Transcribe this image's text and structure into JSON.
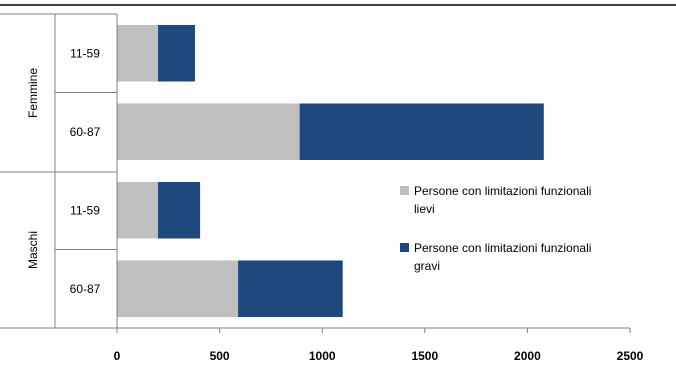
{
  "chart_data": {
    "type": "bar",
    "orientation": "horizontal",
    "stacked": true,
    "groups": [
      {
        "label": "Femmine",
        "categories": [
          "11-59",
          "60-87"
        ]
      },
      {
        "label": "Maschi",
        "categories": [
          "11-59",
          "60-87"
        ]
      }
    ],
    "categories": [
      "Femmine 11-59",
      "Femmine 60-87",
      "Maschi 11-59",
      "Maschi 60-87"
    ],
    "category_labels": [
      "11-59",
      "60-87",
      "11-59",
      "60-87"
    ],
    "series": [
      {
        "name": "Persone con limitazioni funzionali lievi",
        "name_lines": [
          "Persone con limitazioni funzionali",
          "lievi"
        ],
        "values": [
          200,
          890,
          200,
          590
        ],
        "color": "#bfbfbf"
      },
      {
        "name": "Persone con limitazioni funzionali gravi",
        "name_lines": [
          "Persone con limitazioni funzionali",
          "gravi"
        ],
        "values": [
          180,
          1190,
          205,
          510
        ],
        "color": "#1f497d"
      }
    ],
    "xlim": [
      0,
      2500
    ],
    "xticks": [
      "0",
      "500",
      "1000",
      "1500",
      "2000",
      "2500"
    ],
    "title": "",
    "xlabel": "",
    "ylabel": "",
    "grid": false,
    "legend_position": "right"
  }
}
